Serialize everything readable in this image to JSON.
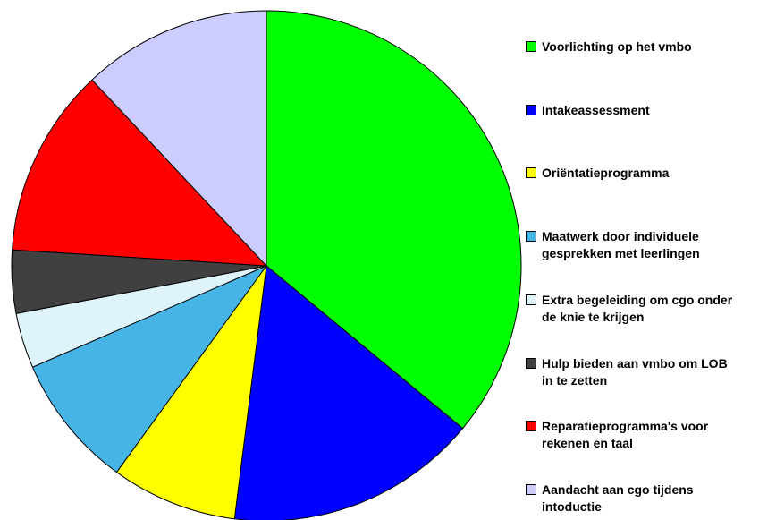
{
  "chart_data": {
    "type": "pie",
    "categories": [
      "Voorlichting op het vmbo",
      "Intakeassessment",
      "Oriëntatieprogramma",
      "Maatwerk door individuele gesprekken met leerlingen",
      "Extra begeleiding om cgo onder de knie te krijgen",
      "Hulp bieden aan vmbo om LOB in te zetten",
      "Reparatieprogramma's voor rekenen en taal",
      "Aandacht aan cgo tijdens intoductie"
    ],
    "values": [
      36,
      16,
      8,
      8.5,
      3.5,
      4,
      12,
      12
    ],
    "colors": [
      "#00ff00",
      "#0000ff",
      "#ffff00",
      "#47b4e6",
      "#dff4fa",
      "#404040",
      "#ff0000",
      "#ccccff"
    ],
    "legend": "right"
  }
}
